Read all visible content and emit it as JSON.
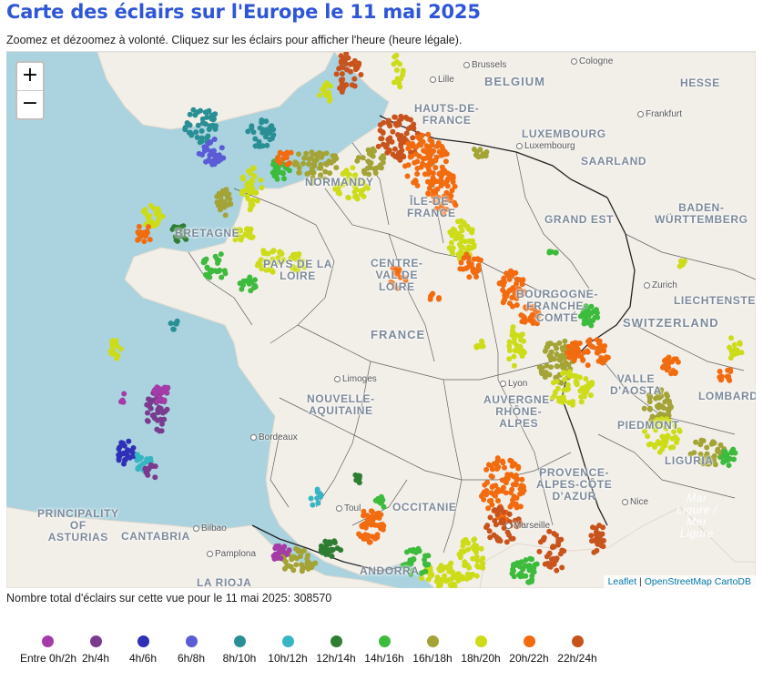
{
  "header": {
    "title": "Carte des éclairs sur l'Europe le 11 mai 2025",
    "subtitle": "Zoomez et dézoomez à volonté. Cliquez sur les éclairs pour afficher l'heure (heure légale)."
  },
  "map": {
    "zoom_in": "+",
    "zoom_out": "−",
    "attribution": {
      "leaflet": "Leaflet",
      "sep": " | ",
      "osm": "OpenStreetMap CartoDB"
    },
    "regions": [
      {
        "name": "belgium",
        "text": "BELGIUM",
        "cls": "lbl big"
      },
      {
        "name": "hesse",
        "text": "HESSE",
        "cls": "lbl"
      },
      {
        "name": "luxembourg",
        "text": "LUXEMBOURG",
        "cls": "lbl"
      },
      {
        "name": "saarland",
        "text": "SAARLAND",
        "cls": "lbl"
      },
      {
        "name": "baden-wurttemberg",
        "text": "BADEN-\nWÜRTTEMBERG",
        "cls": "lbl"
      },
      {
        "name": "liechtenstein",
        "text": "LIECHTENSTEIN",
        "cls": "lbl"
      },
      {
        "name": "switzerland",
        "text": "SWITZERLAND",
        "cls": "lbl big"
      },
      {
        "name": "valle-daosta",
        "text": "VALLE\nD'AOSTA",
        "cls": "lbl"
      },
      {
        "name": "lombardy",
        "text": "LOMBARDY",
        "cls": "lbl"
      },
      {
        "name": "piedmont",
        "text": "PIEDMONT",
        "cls": "lbl"
      },
      {
        "name": "liguria",
        "text": "LIGURIA",
        "cls": "lbl"
      },
      {
        "name": "normandy",
        "text": "NORMANDY",
        "cls": "lbl"
      },
      {
        "name": "hauts-de-france",
        "text": "HAUTS-DE-\nFRANCE",
        "cls": "lbl"
      },
      {
        "name": "ile-de-france",
        "text": "ÎLE-DE-\nFRANCE",
        "cls": "lbl"
      },
      {
        "name": "grand-est",
        "text": "GRAND EST",
        "cls": "lbl"
      },
      {
        "name": "bretagne",
        "text": "BRETAGNE",
        "cls": "lbl"
      },
      {
        "name": "pays-de-la-loire",
        "text": "PAYS DE LA\nLOIRE",
        "cls": "lbl"
      },
      {
        "name": "centre-val-de-loire",
        "text": "CENTRE-\nVAL DE\nLOIRE",
        "cls": "lbl"
      },
      {
        "name": "bourgogne",
        "text": "BOURGOGNE-\nFRANCHE-\nCOMTÉ",
        "cls": "lbl"
      },
      {
        "name": "france",
        "text": "FRANCE",
        "cls": "lbl big"
      },
      {
        "name": "nouvelle-aquitaine",
        "text": "NOUVELLE-\nAQUITAINE",
        "cls": "lbl"
      },
      {
        "name": "auvergne",
        "text": "AUVERGNE-\nRHÔNE-\nALPES",
        "cls": "lbl"
      },
      {
        "name": "provence",
        "text": "PROVENCE-\nALPES-CÔTE\nD'AZUR",
        "cls": "lbl"
      },
      {
        "name": "occitanie",
        "text": "OCCITANIE",
        "cls": "lbl"
      },
      {
        "name": "principality-asturias",
        "text": "PRINCIPALITY\nOF\nASTURIAS",
        "cls": "lbl"
      },
      {
        "name": "cantabria",
        "text": "CANTABRIA",
        "cls": "lbl"
      },
      {
        "name": "la-rioja",
        "text": "LA RIOJA",
        "cls": "lbl"
      },
      {
        "name": "andorra",
        "text": "ANDORRA",
        "cls": "lbl"
      },
      {
        "name": "mar-ligure",
        "text": "Mar\nLigure /\nMer\nLigure",
        "cls": "lbl sea"
      }
    ],
    "cities": [
      {
        "name": "brussels",
        "text": "Brussels"
      },
      {
        "name": "cologne",
        "text": "Cologne"
      },
      {
        "name": "frankfurt",
        "text": "Frankfurt"
      },
      {
        "name": "luxembourg-city",
        "text": "Luxembourg"
      },
      {
        "name": "zurich",
        "text": "Zurich"
      },
      {
        "name": "lille",
        "text": "Lille"
      },
      {
        "name": "limoges",
        "text": "Limoges"
      },
      {
        "name": "lyon",
        "text": "Lyon"
      },
      {
        "name": "bordeaux",
        "text": "Bordeaux"
      },
      {
        "name": "toulouse",
        "text": "Toul"
      },
      {
        "name": "marseille",
        "text": "Marseille"
      },
      {
        "name": "nice",
        "text": "Nice"
      },
      {
        "name": "bilbao",
        "text": "Bilbao"
      },
      {
        "name": "pamplona",
        "text": "Pamplona"
      }
    ]
  },
  "footer": {
    "total_label": "Nombre total d'éclairs sur cette vue pour le 11 mai 2025: 308570"
  },
  "legend": [
    {
      "label": "Entre 0h/2h",
      "color": "#a43ca8"
    },
    {
      "label": "2h/4h",
      "color": "#7a3b8f"
    },
    {
      "label": "4h/6h",
      "color": "#2f2fb8"
    },
    {
      "label": "6h/8h",
      "color": "#5b5bd6"
    },
    {
      "label": "8h/10h",
      "color": "#2a8f95"
    },
    {
      "label": "10h/12h",
      "color": "#36b5c2"
    },
    {
      "label": "12h/14h",
      "color": "#2e7d32"
    },
    {
      "label": "14h/16h",
      "color": "#3dbb3d"
    },
    {
      "label": "16h/18h",
      "color": "#a3a336"
    },
    {
      "label": "18h/20h",
      "color": "#cddc18"
    },
    {
      "label": "20h/22h",
      "color": "#f26b0f"
    },
    {
      "label": "22h/24h",
      "color": "#c8531d"
    }
  ]
}
